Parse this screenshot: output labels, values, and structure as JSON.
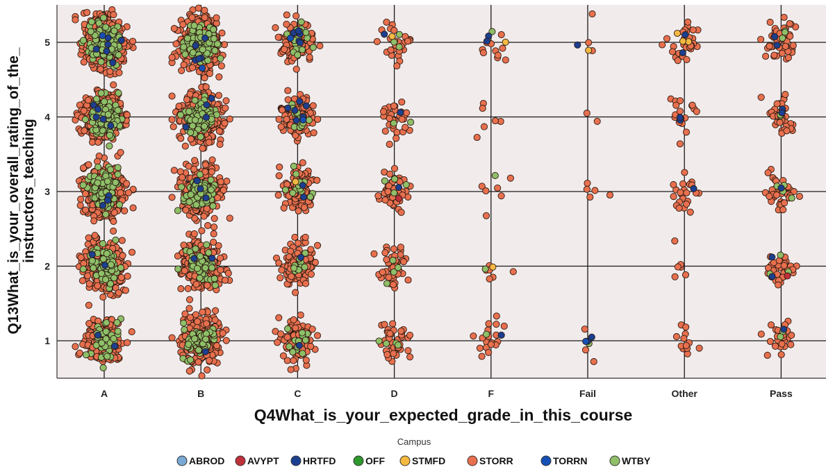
{
  "chart_data": {
    "type": "scatter",
    "subtype": "jitter-strip",
    "xlabel": "Q4What_is_your_expected_grade_in_this_course",
    "ylabel": "Q13What_is_your_overall_rating_of_the_instructors_teaching",
    "ylabel_lines": [
      "Q13What_is_your_overall_rating_of_the_",
      "instructors_teaching"
    ],
    "categories": [
      "A",
      "B",
      "C",
      "D",
      "F",
      "Fail",
      "Other",
      "Pass"
    ],
    "y_ticks": [
      1,
      2,
      3,
      4,
      5
    ],
    "ylim": [
      0.5,
      5.5
    ],
    "grid": true,
    "background": "#f2ebeb",
    "legend_title": "Campus",
    "legend_position": "bottom",
    "series": [
      {
        "name": "ABROD",
        "color": "#79a9d4"
      },
      {
        "name": "AVYPT",
        "color": "#c0303a"
      },
      {
        "name": "HRTFD",
        "color": "#1c3f8f"
      },
      {
        "name": "OFF",
        "color": "#2e9a2e"
      },
      {
        "name": "STMFD",
        "color": "#f5b942"
      },
      {
        "name": "STORR",
        "color": "#e8704e"
      },
      {
        "name": "TORRN",
        "color": "#1650b5"
      },
      {
        "name": "WTBY",
        "color": "#8fbf68"
      }
    ],
    "approx_counts": {
      "rows": [
        "A",
        "B",
        "C",
        "D",
        "F",
        "Fail",
        "Other",
        "Pass"
      ],
      "columns_rating": [
        1,
        2,
        3,
        4,
        5
      ],
      "STORR": [
        [
          190,
          260,
          340,
          380,
          420
        ],
        [
          230,
          280,
          300,
          360,
          380
        ],
        [
          110,
          120,
          110,
          120,
          110
        ],
        [
          40,
          45,
          45,
          30,
          25
        ],
        [
          18,
          6,
          6,
          6,
          10
        ],
        [
          3,
          0,
          5,
          2,
          3
        ],
        [
          12,
          6,
          22,
          18,
          28
        ],
        [
          25,
          35,
          35,
          35,
          55
        ]
      ],
      "WTBY": [
        [
          45,
          70,
          120,
          140,
          170
        ],
        [
          55,
          50,
          75,
          90,
          110
        ],
        [
          12,
          10,
          12,
          15,
          20
        ],
        [
          4,
          4,
          4,
          2,
          3
        ],
        [
          1,
          1,
          1,
          0,
          1
        ],
        [
          1,
          0,
          0,
          0,
          0
        ],
        [
          0,
          0,
          0,
          0,
          0
        ],
        [
          2,
          3,
          4,
          2,
          3
        ]
      ],
      "HRTFD": [
        [
          2,
          2,
          3,
          5,
          6
        ],
        [
          1,
          2,
          3,
          4,
          5
        ],
        [
          1,
          1,
          2,
          6,
          6
        ],
        [
          0,
          0,
          1,
          1,
          1
        ],
        [
          1,
          0,
          0,
          0,
          2
        ],
        [
          2,
          0,
          0,
          0,
          1
        ],
        [
          0,
          0,
          1,
          2,
          2
        ],
        [
          1,
          2,
          1,
          2,
          2
        ]
      ],
      "TORRN": [
        [
          0,
          0,
          0,
          0,
          1
        ],
        [
          0,
          0,
          0,
          0,
          1
        ],
        [
          0,
          0,
          0,
          1,
          1
        ],
        [
          0,
          0,
          0,
          0,
          0
        ],
        [
          0,
          0,
          0,
          0,
          0
        ],
        [
          1,
          0,
          0,
          0,
          0
        ],
        [
          0,
          0,
          0,
          0,
          0
        ],
        [
          0,
          0,
          0,
          0,
          0
        ]
      ],
      "STMFD": [
        [
          0,
          0,
          0,
          0,
          0
        ],
        [
          0,
          0,
          0,
          0,
          0
        ],
        [
          0,
          0,
          1,
          0,
          0
        ],
        [
          0,
          0,
          0,
          0,
          1
        ],
        [
          0,
          1,
          0,
          0,
          1
        ],
        [
          0,
          0,
          0,
          0,
          1
        ],
        [
          0,
          0,
          0,
          0,
          3
        ],
        [
          0,
          0,
          0,
          0,
          0
        ]
      ],
      "AVYPT": [
        [
          0,
          0,
          0,
          0,
          0
        ],
        [
          0,
          0,
          0,
          0,
          0
        ],
        [
          0,
          0,
          0,
          0,
          0
        ],
        [
          0,
          0,
          1,
          0,
          0
        ],
        [
          0,
          0,
          0,
          0,
          0
        ],
        [
          0,
          0,
          0,
          0,
          0
        ],
        [
          0,
          0,
          0,
          0,
          0
        ],
        [
          0,
          1,
          0,
          0,
          0
        ]
      ],
      "OFF": [
        [
          0,
          0,
          0,
          0,
          0
        ],
        [
          0,
          0,
          0,
          0,
          0
        ],
        [
          0,
          0,
          0,
          0,
          0
        ],
        [
          0,
          0,
          0,
          0,
          0
        ],
        [
          0,
          0,
          0,
          0,
          0
        ],
        [
          0,
          0,
          0,
          0,
          0
        ],
        [
          0,
          0,
          0,
          0,
          0
        ],
        [
          0,
          0,
          0,
          0,
          0
        ]
      ],
      "ABROD": [
        [
          0,
          0,
          0,
          0,
          0
        ],
        [
          0,
          0,
          0,
          0,
          0
        ],
        [
          0,
          0,
          0,
          0,
          0
        ],
        [
          0,
          0,
          0,
          0,
          0
        ],
        [
          0,
          0,
          0,
          0,
          0
        ],
        [
          0,
          0,
          0,
          0,
          0
        ],
        [
          0,
          0,
          0,
          0,
          0
        ],
        [
          0,
          0,
          0,
          0,
          0
        ]
      ]
    }
  }
}
